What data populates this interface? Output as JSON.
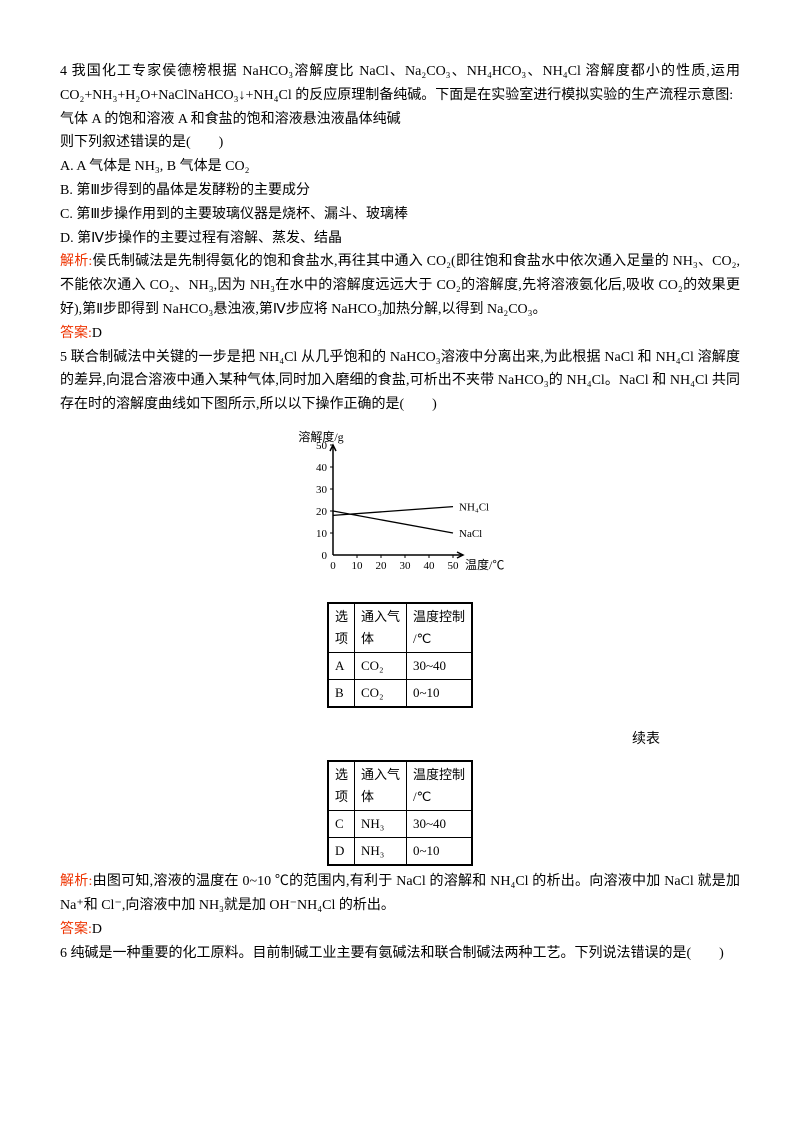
{
  "q4": {
    "number": "4",
    "intro": "我国化工专家侯德榜根据 NaHCO₃溶解度比 NaCl、Na₂CO₃、NH₄HCO₃、NH₄Cl 溶解度都小的性质,运用 CO₂+NH₃+H₂O+NaClNaHCO₃↓+NH₄Cl 的反应原理制备纯碱。下面是在实验室进行模拟实验的生产流程示意图:",
    "flow": "气体 A 的饱和溶液 A 和食盐的饱和溶液悬浊液晶体纯碱",
    "stem": "则下列叙述错误的是(　　)",
    "optA": "A. A 气体是 NH₃, B 气体是 CO₂",
    "optB": "B. 第Ⅲ步得到的晶体是发酵粉的主要成分",
    "optC": "C. 第Ⅲ步操作用到的主要玻璃仪器是烧杯、漏斗、玻璃棒",
    "optD": "D. 第Ⅳ步操作的主要过程有溶解、蒸发、结晶",
    "analysisLabel": "解析:",
    "analysis": "侯氏制碱法是先制得氨化的饱和食盐水,再往其中通入 CO₂(即往饱和食盐水中依次通入足量的 NH₃、CO₂,不能依次通入 CO₂、NH₃,因为 NH₃在水中的溶解度远远大于 CO₂的溶解度,先将溶液氨化后,吸收 CO₂的效果更好),第Ⅱ步即得到 NaHCO₃悬浊液,第Ⅳ步应将 NaHCO₃加热分解,以得到 Na₂CO₃。",
    "answerLabel": "答案:",
    "answer": "D"
  },
  "q5": {
    "number": "5",
    "intro": "联合制碱法中关键的一步是把 NH₄Cl 从几乎饱和的 NaHCO₃溶液中分离出来,为此根据 NaCl 和 NH₄Cl 溶解度的差异,向混合溶液中通入某种气体,同时加入磨细的食盐,可析出不夹带 NaHCO₃的 NH₄Cl。NaCl 和 NH₄Cl 共同存在时的溶解度曲线如下图所示,所以以下操作正确的是(　　)",
    "chart": {
      "ylabel": "溶解度/g",
      "xlabel": "温度/℃",
      "yticks": [
        "0",
        "10",
        "20",
        "30",
        "40",
        "50"
      ],
      "xticks": [
        "0",
        "10",
        "20",
        "30",
        "40",
        "50"
      ],
      "series": [
        {
          "name": "NH₄Cl",
          "start_y": 18,
          "end_y": 22,
          "color": "#000"
        },
        {
          "name": "NaCl",
          "start_y": 20,
          "end_y": 10,
          "color": "#000"
        }
      ],
      "background": "#ffffff",
      "axis_color": "#000000"
    },
    "table1": {
      "headers": [
        "选项",
        "通入气体",
        "温度控制/℃"
      ],
      "rows": [
        [
          "A",
          "CO₂",
          "30~40"
        ],
        [
          "B",
          "CO₂",
          "0~10"
        ]
      ]
    },
    "continueLabel": "续表",
    "table2": {
      "headers": [
        "选项",
        "通入气体",
        "温度控制/℃"
      ],
      "rows": [
        [
          "C",
          "NH₃",
          "30~40"
        ],
        [
          "D",
          "NH₃",
          "0~10"
        ]
      ]
    },
    "analysisLabel": "解析:",
    "analysis": "由图可知,溶液的温度在 0~10 ℃的范围内,有利于 NaCl 的溶解和 NH₄Cl 的析出。向溶液中加 NaCl 就是加 Na⁺和 Cl⁻,向溶液中加 NH₃就是加 OH⁻NH₄Cl 的析出。",
    "answerLabel": "答案:",
    "answer": "D"
  },
  "q6": {
    "number": "6",
    "intro": "纯碱是一种重要的化工原料。目前制碱工业主要有氨碱法和联合制碱法两种工艺。下列说法错误的是(　　)"
  }
}
